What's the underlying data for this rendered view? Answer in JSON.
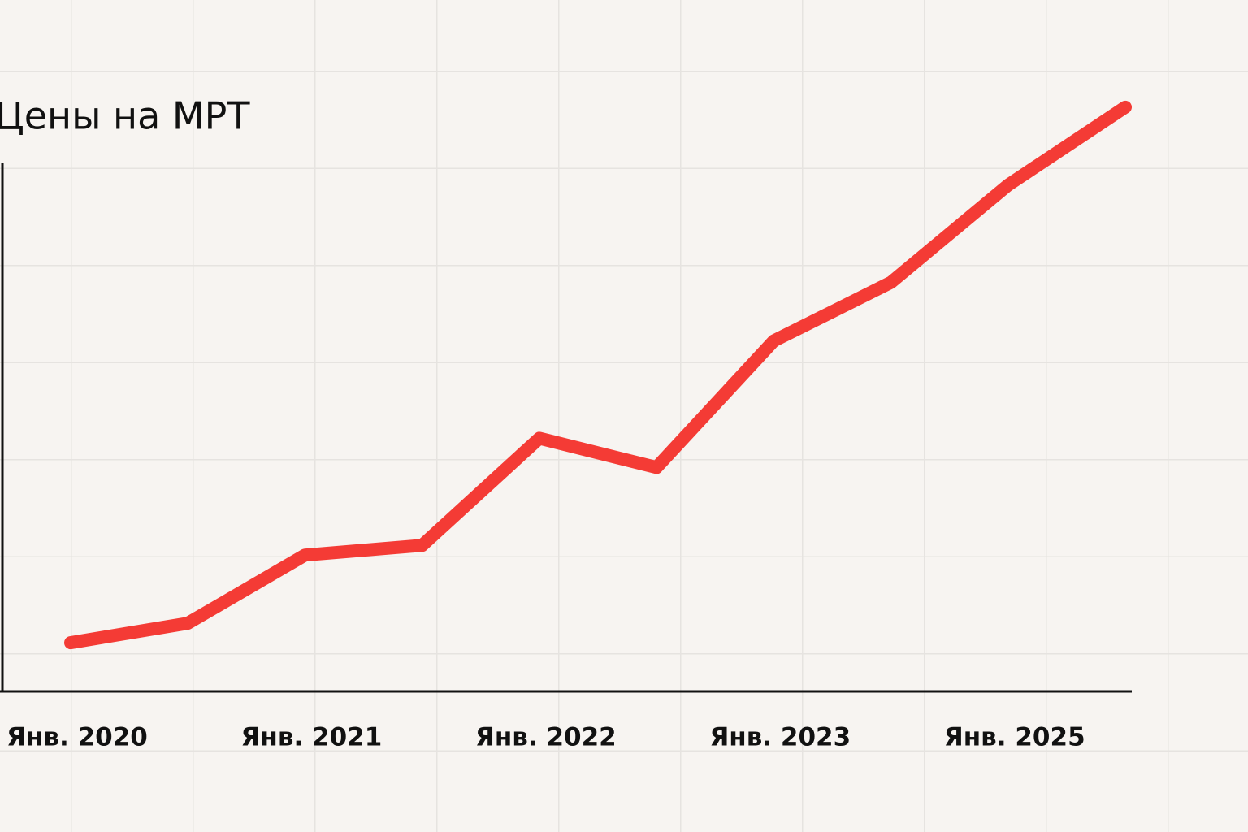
{
  "chart_data": {
    "type": "line",
    "title": "Цены на МРТ",
    "categories": [
      "Янв. 2020",
      null,
      "Янв. 2021",
      null,
      "Янв. 2022",
      null,
      "Янв. 2023",
      null,
      "Янв. 2025",
      null
    ],
    "values": [
      0.5,
      0.7,
      1.4,
      1.5,
      2.6,
      2.3,
      3.6,
      4.2,
      5.2,
      6.0
    ],
    "color": "#f43b35",
    "ylim": [
      0,
      7.1
    ]
  }
}
